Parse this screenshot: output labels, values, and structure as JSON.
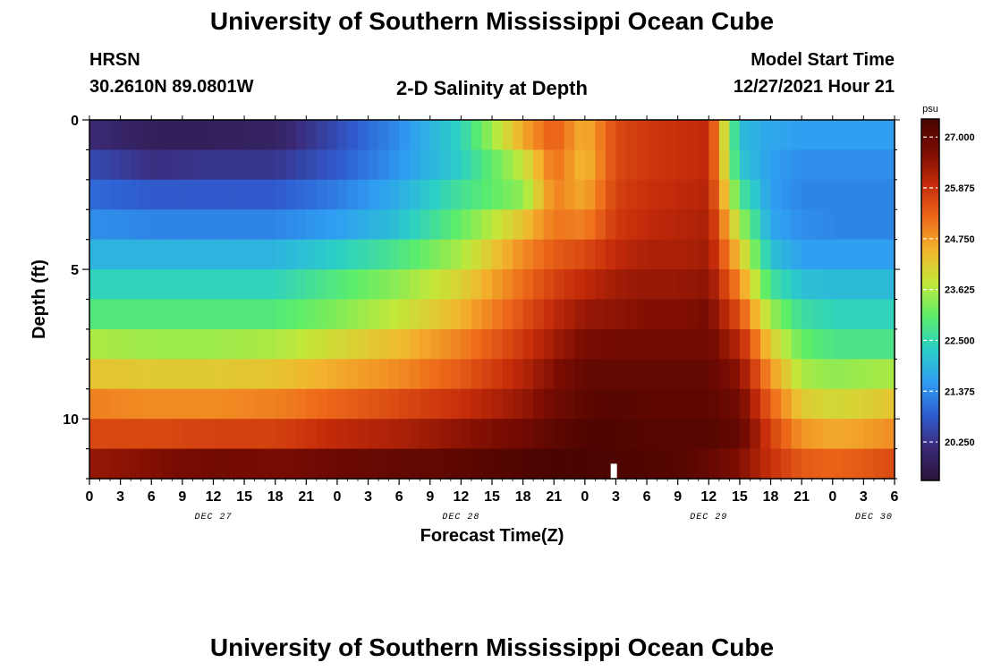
{
  "header": {
    "title": "University of Southern Mississippi Ocean Cube",
    "station": "HRSN",
    "coords": "30.2610N  89.0801W",
    "subtitle": "2-D Salinity at Depth",
    "model_start_label": "Model Start Time",
    "model_start_value": "12/27/2021 Hour 21",
    "footer_title": "University of Southern Mississippi Ocean Cube"
  },
  "chart_data": {
    "type": "heatmap",
    "title": "2-D Salinity at Depth",
    "xlabel": "Forecast Time(Z)",
    "ylabel": "Depth (ft)",
    "y_ticks": [
      "0",
      "5",
      "10"
    ],
    "y_range": [
      0,
      12
    ],
    "x_range_hours": [
      0,
      78
    ],
    "x_ticks": [
      "0",
      "3",
      "6",
      "9",
      "12",
      "15",
      "18",
      "21",
      "0",
      "3",
      "6",
      "9",
      "12",
      "15",
      "18",
      "21",
      "0",
      "3",
      "6",
      "9",
      "12",
      "15",
      "18",
      "21",
      "0",
      "3",
      "6"
    ],
    "dates": [
      "DEC 27",
      "DEC 28",
      "DEC 29",
      "DEC 30"
    ],
    "colorbar": {
      "unit": "psu",
      "range": [
        19.4,
        27.4
      ],
      "ticks": [
        "27.000",
        "25.875",
        "24.750",
        "23.625",
        "22.500",
        "21.375",
        "20.250"
      ],
      "colors": [
        "#2a1438",
        "#3b2a78",
        "#2f5ed2",
        "#2f9ef2",
        "#2ccfc6",
        "#5ced6a",
        "#c2e83a",
        "#f3b52e",
        "#ee6a1a",
        "#c52c0a",
        "#7a0c02",
        "#4a0401"
      ]
    },
    "depth_rows": 12,
    "time_steps_hours": [
      0,
      6,
      12,
      18,
      24,
      30,
      36,
      42,
      45,
      48,
      51,
      54,
      57,
      60,
      63,
      66,
      69,
      72,
      75,
      78
    ],
    "salinity_rows": [
      [
        20.1,
        19.8,
        19.8,
        19.9,
        20.6,
        21.4,
        22.4,
        24.6,
        25.4,
        24.5,
        25.6,
        25.8,
        25.9,
        26.0,
        22.0,
        21.7,
        21.6,
        21.6,
        21.6,
        21.6
      ],
      [
        20.6,
        20.2,
        20.3,
        20.3,
        20.8,
        21.5,
        22.3,
        23.8,
        25.2,
        24.4,
        25.6,
        25.8,
        25.9,
        26.0,
        22.2,
        21.6,
        21.4,
        21.4,
        21.4,
        21.4
      ],
      [
        21.0,
        20.8,
        20.8,
        20.8,
        21.2,
        21.8,
        22.7,
        23.4,
        25.0,
        24.6,
        25.7,
        25.9,
        26.0,
        26.1,
        22.8,
        21.6,
        21.3,
        21.3,
        21.3,
        21.3
      ],
      [
        21.4,
        21.3,
        21.3,
        21.3,
        21.6,
        22.1,
        23.1,
        24.3,
        25.1,
        25.0,
        25.8,
        26.0,
        26.1,
        26.2,
        23.6,
        21.7,
        21.4,
        21.3,
        21.3,
        21.3
      ],
      [
        21.9,
        21.9,
        21.9,
        21.9,
        22.3,
        22.8,
        23.6,
        24.9,
        25.4,
        25.6,
        26.0,
        26.2,
        26.2,
        26.3,
        24.3,
        22.1,
        21.6,
        21.6,
        21.6,
        21.6
      ],
      [
        22.4,
        22.4,
        22.4,
        22.4,
        22.9,
        23.4,
        24.1,
        25.2,
        25.7,
        26.0,
        26.3,
        26.4,
        26.4,
        26.5,
        24.9,
        22.7,
        22.1,
        22.0,
        22.0,
        22.0
      ],
      [
        22.9,
        22.9,
        22.9,
        22.9,
        23.3,
        23.8,
        24.5,
        25.5,
        26.0,
        26.4,
        26.5,
        26.6,
        26.6,
        26.7,
        25.5,
        23.5,
        22.6,
        22.4,
        22.4,
        22.4
      ],
      [
        23.6,
        23.5,
        23.5,
        23.6,
        24.0,
        24.4,
        25.0,
        25.8,
        26.3,
        26.7,
        26.8,
        26.8,
        26.8,
        26.8,
        26.1,
        24.2,
        23.1,
        22.8,
        22.8,
        22.8
      ],
      [
        24.3,
        24.2,
        24.2,
        24.3,
        24.6,
        24.9,
        25.4,
        26.1,
        26.6,
        27.0,
        27.0,
        27.0,
        27.0,
        27.0,
        26.5,
        24.8,
        23.6,
        23.4,
        23.5,
        23.6
      ],
      [
        25.0,
        24.9,
        24.9,
        25.0,
        25.3,
        25.6,
        25.9,
        26.4,
        26.8,
        27.1,
        27.2,
        27.1,
        27.1,
        27.1,
        26.8,
        25.3,
        24.2,
        24.0,
        24.1,
        24.3
      ],
      [
        25.6,
        25.6,
        25.7,
        25.7,
        26.0,
        26.2,
        26.5,
        26.8,
        27.1,
        27.3,
        27.3,
        27.2,
        27.2,
        27.2,
        27.0,
        25.7,
        24.8,
        24.6,
        24.7,
        24.9
      ],
      [
        26.4,
        26.6,
        26.8,
        26.7,
        26.9,
        27.0,
        27.1,
        27.3,
        27.4,
        27.4,
        27.3,
        27.3,
        27.2,
        27.0,
        26.6,
        25.9,
        25.4,
        25.3,
        25.4,
        25.6
      ]
    ]
  }
}
